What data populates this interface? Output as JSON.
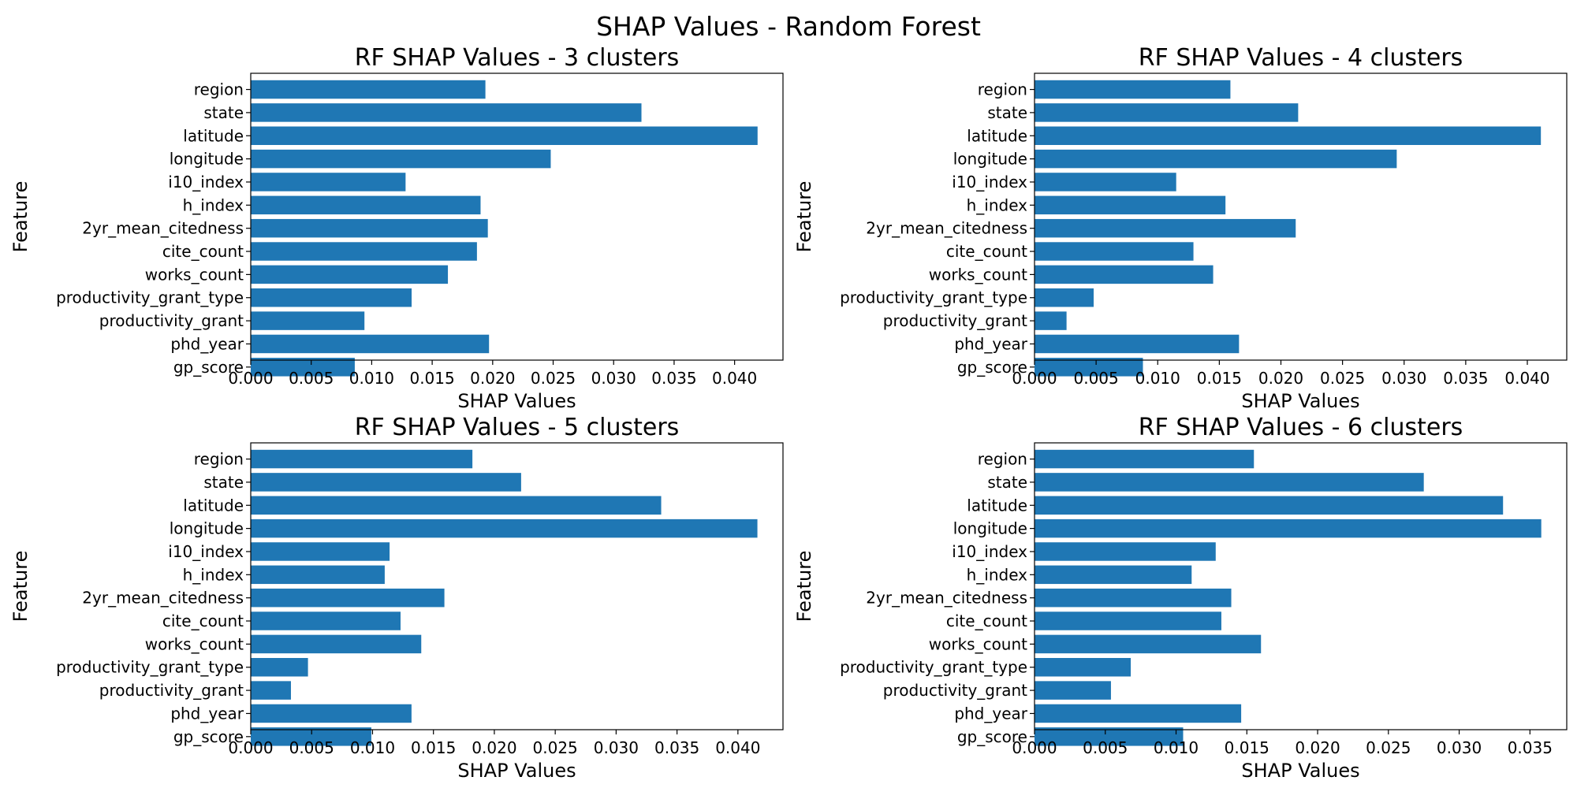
{
  "figure": {
    "suptitle": "SHAP Values - Random Forest"
  },
  "colors": {
    "bar": "#1f77b4",
    "axis": "#000000",
    "background": "#ffffff"
  },
  "chart_data": [
    {
      "type": "bar",
      "orientation": "horizontal",
      "title": "RF SHAP Values - 3 clusters",
      "xlabel": "SHAP Values",
      "ylabel": "Feature",
      "categories": [
        "region",
        "state",
        "latitude",
        "longitude",
        "i10_index",
        "h_index",
        "2yr_mean_citedness",
        "cite_count",
        "works_count",
        "productivity_grant_type",
        "productivity_grant",
        "phd_year",
        "gp_score"
      ],
      "values": [
        0.0194,
        0.0323,
        0.0419,
        0.0248,
        0.0128,
        0.019,
        0.0196,
        0.0187,
        0.0163,
        0.0133,
        0.0094,
        0.0197,
        0.0086
      ],
      "xlim": [
        0,
        0.044
      ],
      "xticks": [
        "0.000",
        "0.005",
        "0.010",
        "0.015",
        "0.020",
        "0.025",
        "0.030",
        "0.035",
        "0.040"
      ],
      "grid": false,
      "legend": "none"
    },
    {
      "type": "bar",
      "orientation": "horizontal",
      "title": "RF SHAP Values - 4 clusters",
      "xlabel": "SHAP Values",
      "ylabel": "Feature",
      "categories": [
        "region",
        "state",
        "latitude",
        "longitude",
        "i10_index",
        "h_index",
        "2yr_mean_citedness",
        "cite_count",
        "works_count",
        "productivity_grant_type",
        "productivity_grant",
        "phd_year",
        "gp_score"
      ],
      "values": [
        0.0159,
        0.0214,
        0.0411,
        0.0294,
        0.0115,
        0.0155,
        0.0212,
        0.0129,
        0.0145,
        0.0048,
        0.0026,
        0.0166,
        0.0088
      ],
      "xlim": [
        0,
        0.0432
      ],
      "xticks": [
        "0.000",
        "0.005",
        "0.010",
        "0.015",
        "0.020",
        "0.025",
        "0.030",
        "0.035",
        "0.040"
      ],
      "grid": false,
      "legend": "none"
    },
    {
      "type": "bar",
      "orientation": "horizontal",
      "title": "RF SHAP Values - 5 clusters",
      "xlabel": "SHAP Values",
      "ylabel": "Feature",
      "categories": [
        "region",
        "state",
        "latitude",
        "longitude",
        "i10_index",
        "h_index",
        "2yr_mean_citedness",
        "cite_count",
        "works_count",
        "productivity_grant_type",
        "productivity_grant",
        "phd_year",
        "gp_score"
      ],
      "values": [
        0.0182,
        0.0222,
        0.0337,
        0.0416,
        0.0114,
        0.011,
        0.0159,
        0.0123,
        0.014,
        0.0047,
        0.0033,
        0.0132,
        0.0099
      ],
      "xlim": [
        0,
        0.0437
      ],
      "xticks": [
        "0.000",
        "0.005",
        "0.010",
        "0.015",
        "0.020",
        "0.025",
        "0.030",
        "0.035",
        "0.040"
      ],
      "grid": false,
      "legend": "none"
    },
    {
      "type": "bar",
      "orientation": "horizontal",
      "title": "RF SHAP Values - 6 clusters",
      "xlabel": "SHAP Values",
      "ylabel": "Feature",
      "categories": [
        "region",
        "state",
        "latitude",
        "longitude",
        "i10_index",
        "h_index",
        "2yr_mean_citedness",
        "cite_count",
        "works_count",
        "productivity_grant_type",
        "productivity_grant",
        "phd_year",
        "gp_score"
      ],
      "values": [
        0.0155,
        0.0275,
        0.0331,
        0.0358,
        0.0128,
        0.0111,
        0.0139,
        0.0132,
        0.016,
        0.0068,
        0.0054,
        0.0146,
        0.0105
      ],
      "xlim": [
        0,
        0.0376
      ],
      "xticks": [
        "0.000",
        "0.005",
        "0.010",
        "0.015",
        "0.020",
        "0.025",
        "0.030",
        "0.035"
      ],
      "grid": false,
      "legend": "none"
    }
  ]
}
